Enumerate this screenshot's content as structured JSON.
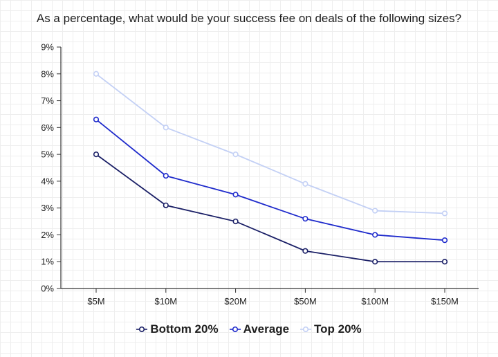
{
  "chart_data": {
    "type": "line",
    "title": "As a percentage, what would be your success fee on deals of the following sizes?",
    "categories": [
      "$5M",
      "$10M",
      "$20M",
      "$50M",
      "$100M",
      "$150M"
    ],
    "y_ticks": [
      "0%",
      "1%",
      "2%",
      "3%",
      "4%",
      "5%",
      "6%",
      "7%",
      "8%",
      "9%"
    ],
    "ylim": [
      0,
      9
    ],
    "grid": true,
    "legend_position": "bottom",
    "series": [
      {
        "name": "Bottom 20%",
        "color": "#1a1f66",
        "values": [
          5.0,
          3.1,
          2.5,
          1.4,
          1.0,
          1.0
        ]
      },
      {
        "name": "Average",
        "color": "#1f2bcc",
        "values": [
          6.3,
          4.2,
          3.5,
          2.6,
          2.0,
          1.8
        ]
      },
      {
        "name": "Top 20%",
        "color": "#c3d0f5",
        "values": [
          8.0,
          6.0,
          5.0,
          3.9,
          2.9,
          2.8
        ]
      }
    ]
  }
}
